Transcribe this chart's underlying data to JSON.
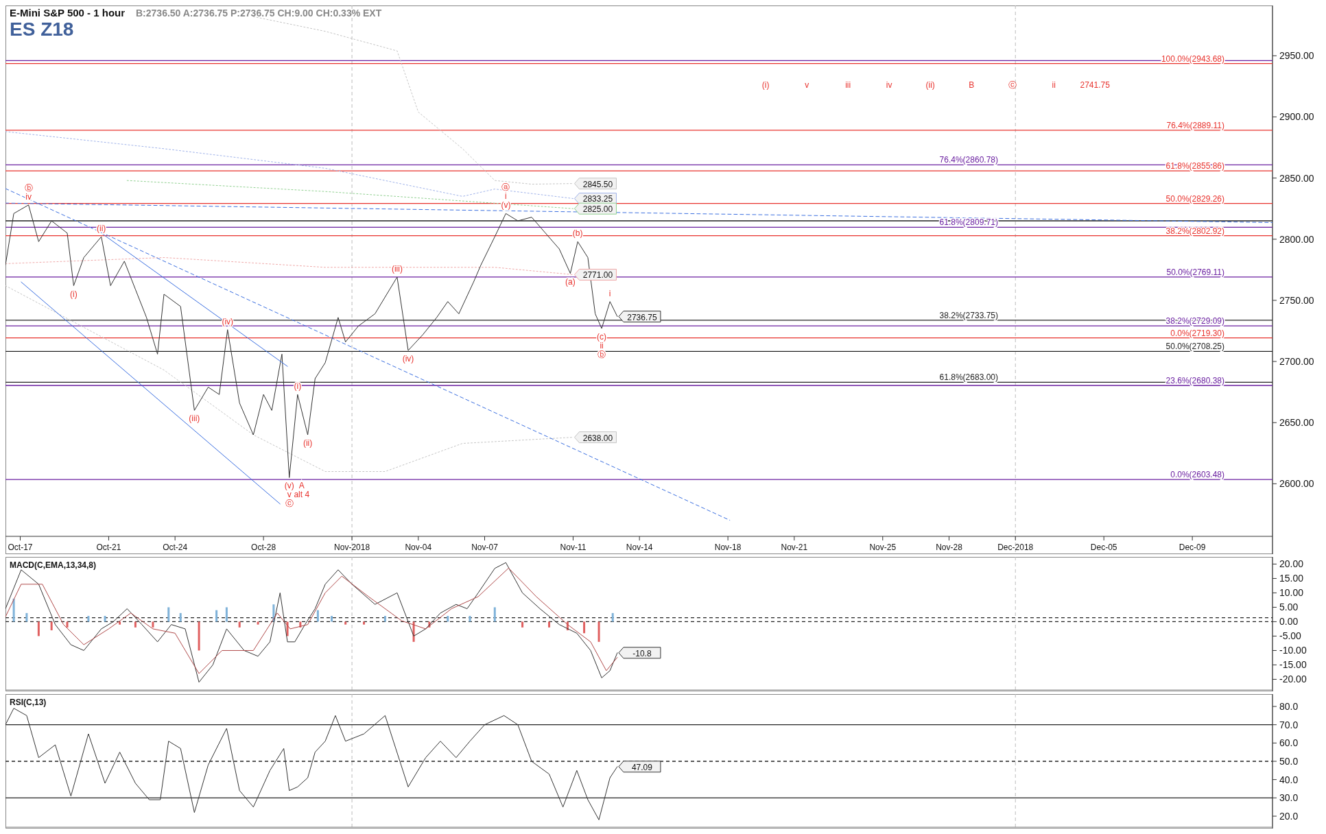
{
  "chart_data": [
    {
      "type": "line",
      "title": "E-Mini S&P 500 - 1 hour",
      "subtitle": "B:2736.50 A:2736.75 P:2736.75 CH:9.00 CH:0.33% EXT",
      "xlim": [
        "2018-10-16T08:00",
        "2018-12-12T15:00"
      ],
      "xticks": [
        {
          "value": "2018-10-17",
          "label": "Oct-17"
        },
        {
          "value": "2018-10-21",
          "label": "Oct-21"
        },
        {
          "value": "2018-10-24",
          "label": "Oct-24"
        },
        {
          "value": "2018-10-28",
          "label": "Oct-28"
        },
        {
          "value": "2018-11-01",
          "label": "Nov-2018"
        },
        {
          "value": "2018-11-04",
          "label": "Nov-04"
        },
        {
          "value": "2018-11-07",
          "label": "Nov-07"
        },
        {
          "value": "2018-11-11",
          "label": "Nov-11"
        },
        {
          "value": "2018-11-14",
          "label": "Nov-14"
        },
        {
          "value": "2018-11-18",
          "label": "Nov-18"
        },
        {
          "value": "2018-11-21",
          "label": "Nov-21"
        },
        {
          "value": "2018-11-25",
          "label": "Nov-25"
        },
        {
          "value": "2018-11-28",
          "label": "Nov-28"
        },
        {
          "value": "2018-12-01",
          "label": "Dec-2018"
        },
        {
          "value": "2018-12-05",
          "label": "Dec-05"
        },
        {
          "value": "2018-12-09",
          "label": "Dec-09"
        }
      ],
      "ylim": [
        2557,
        2990
      ],
      "yticks": [
        {
          "value": 2600,
          "label": "2600.00"
        },
        {
          "value": 2650,
          "label": "2650.00"
        },
        {
          "value": 2700,
          "label": "2700.00"
        },
        {
          "value": 2750,
          "label": "2750.00"
        },
        {
          "value": 2800,
          "label": "2800.00"
        },
        {
          "value": 2850,
          "label": "2850.00"
        },
        {
          "value": 2900,
          "label": "2900.00"
        },
        {
          "value": 2950,
          "label": "2950.00"
        }
      ],
      "series": [
        {
          "color": "#c4c4c4",
          "line_style": "dotted",
          "x": [
            "2018-10-27T13:00",
            "2018-10-30T19:00",
            "2018-11-03T01:00",
            "2018-11-04T00:00",
            "2018-11-06T00:00",
            "2018-11-07T11:00",
            "2018-11-09T03:00",
            "2018-11-11T00:00"
          ],
          "values": [
            2982,
            2970,
            2954,
            2904,
            2874,
            2848,
            2845,
            2845.5
          ]
        },
        {
          "color": "#9fb2ea",
          "line_style": "dotted",
          "x": [
            "2018-10-16T08:00",
            "2018-10-23T12:00",
            "2018-10-30T19:00",
            "2018-11-06T00:00",
            "2018-11-07T11:00",
            "2018-11-11T00:00"
          ],
          "values": [
            2888,
            2874,
            2858,
            2835,
            2841,
            2833.25
          ]
        },
        {
          "color": "#8fd08f",
          "line_style": "dotted",
          "x": [
            "2018-10-21T20:00",
            "2018-10-30T19:00",
            "2018-11-11T00:00"
          ],
          "values": [
            2848,
            2839,
            2825
          ]
        },
        {
          "color": "#f0a8a8",
          "line_style": "dotted",
          "x": [
            "2018-10-16T08:00",
            "2018-10-23T12:00",
            "2018-10-30T19:00",
            "2018-11-07T11:00",
            "2018-11-11T00:00"
          ],
          "values": [
            2780,
            2785,
            2777,
            2777,
            2771
          ]
        },
        {
          "color": "#c4c4c4",
          "line_style": "dotted",
          "x": [
            "2018-10-16T08:00",
            "2018-10-23T12:00",
            "2018-10-27T13:00",
            "2018-10-30T19:00",
            "2018-11-02T12:00",
            "2018-11-06T00:00",
            "2018-11-11T00:00"
          ],
          "values": [
            2762,
            2693,
            2640,
            2610,
            2610,
            2633,
            2638
          ]
        },
        {
          "color": "#333333",
          "x": [
            "2018-10-16T08:00",
            "2018-10-16T17:00",
            "2018-10-17T09:00",
            "2018-10-17T20:00",
            "2018-10-18T10:00",
            "2018-10-19T03:00",
            "2018-10-19T10:00",
            "2018-10-19T21:00",
            "2018-10-20T16:00",
            "2018-10-21T02:00",
            "2018-10-21T17:00",
            "2018-10-22T05:00",
            "2018-10-22T17:00",
            "2018-10-23T05:00",
            "2018-10-23T12:00",
            "2018-10-24T06:00",
            "2018-10-24T21:00",
            "2018-10-25T12:00",
            "2018-10-26T00:00",
            "2018-10-26T09:00",
            "2018-10-26T22:00",
            "2018-10-27T13:00",
            "2018-10-28T00:00",
            "2018-10-28T09:00",
            "2018-10-28T20:00",
            "2018-10-29T04:00",
            "2018-10-29T13:00",
            "2018-10-30T00:00",
            "2018-10-30T08:00",
            "2018-10-30T19:00",
            "2018-10-31T09:00",
            "2018-10-31T17:00",
            "2018-11-01T07:00",
            "2018-11-02T01:00",
            "2018-11-03T01:00",
            "2018-11-03T13:00",
            "2018-11-04T05:00",
            "2018-11-04T20:00",
            "2018-11-05T08:00",
            "2018-11-05T20:00",
            "2018-11-06T12:00",
            "2018-11-06T20:00",
            "2018-11-07T11:00",
            "2018-11-07T23:00",
            "2018-11-08T12:00",
            "2018-11-09T03:00",
            "2018-11-09T18:00",
            "2018-11-10T09:00",
            "2018-11-10T21:00",
            "2018-11-11T05:00",
            "2018-11-11T16:00",
            "2018-11-12T00:00",
            "2018-11-12T07:00",
            "2018-11-12T16:00",
            "2018-11-13T00:00"
          ],
          "values": [
            2779,
            2821,
            2828,
            2798,
            2815,
            2805,
            2762,
            2785,
            2802,
            2762,
            2782,
            2759,
            2736,
            2706,
            2755,
            2745,
            2660,
            2679,
            2673,
            2726,
            2666,
            2640,
            2673,
            2660,
            2706,
            2605,
            2673,
            2640,
            2686,
            2699,
            2736,
            2716,
            2729,
            2739,
            2769,
            2709,
            2722,
            2736,
            2749,
            2739,
            2765,
            2779,
            2802,
            2821,
            2815,
            2818,
            2805,
            2792,
            2772,
            2798,
            2785,
            2739,
            2727,
            2749,
            2736.75
          ]
        },
        {
          "color": "#3b6fe0",
          "line_style": "dashed",
          "x": [
            "2018-10-16T08:00",
            "2018-12-12T15:00"
          ],
          "values": [
            2829.5,
            2813.6
          ]
        },
        {
          "color": "#3b6fe0",
          "line_style": "dashed",
          "x": [
            "2018-10-16T08:00",
            "2018-11-18T02:00"
          ],
          "values": [
            2841.4,
            2570.2
          ]
        },
        {
          "color": "#3b6fe0",
          "line_style": "solid",
          "x": [
            "2018-10-20T16:00",
            "2018-10-29T02:00"
          ],
          "values": [
            2805,
            2696
          ]
        },
        {
          "color": "#3b6fe0",
          "line_style": "solid",
          "x": [
            "2018-10-17T01:00",
            "2018-10-28T18:00"
          ],
          "values": [
            2765,
            2583.5
          ]
        }
      ],
      "ref_lines": [
        {
          "axis": "x",
          "value": "2018-11-01",
          "color": "#bbbbbb",
          "line_style": "dashed"
        },
        {
          "axis": "x",
          "value": "2018-12-01",
          "color": "#bbbbbb",
          "line_style": "dashed"
        },
        {
          "axis": "y",
          "value": 2946,
          "color": "#6a1fa0"
        },
        {
          "axis": "y",
          "value": 2943.68,
          "label": "100.0%(2943.68)",
          "color": "#e8322d"
        },
        {
          "axis": "y",
          "value": 2889.11,
          "label": "76.4%(2889.11)",
          "color": "#e8322d"
        },
        {
          "axis": "y",
          "value": 2855.86,
          "label": "61.8%(2855.86)",
          "color": "#e8322d"
        },
        {
          "axis": "y",
          "value": 2829.26,
          "label": "50.0%(2829.26)",
          "color": "#e8322d"
        },
        {
          "axis": "y",
          "value": 2802.92,
          "label": "38.2%(2802.92)",
          "color": "#e8322d"
        },
        {
          "axis": "y",
          "value": 2719.3,
          "label": "0.0%(2719.30)",
          "color": "#e8322d"
        },
        {
          "axis": "y",
          "value": 2860.78,
          "label": "76.4%(2860.78)",
          "color": "#6a1fa0"
        },
        {
          "axis": "y",
          "value": 2809.71,
          "label": "61.8%(2809.71)",
          "color": "#6a1fa0"
        },
        {
          "axis": "y",
          "value": 2769.11,
          "label": "50.0%(2769.11)",
          "color": "#6a1fa0"
        },
        {
          "axis": "y",
          "value": 2729.09,
          "label": "38.2%(2729.09)",
          "color": "#6a1fa0"
        },
        {
          "axis": "y",
          "value": 2680.38,
          "label": "23.6%(2680.38)",
          "color": "#6a1fa0"
        },
        {
          "axis": "y",
          "value": 2603.48,
          "label": "0.0%(2603.48)",
          "color": "#6a1fa0"
        },
        {
          "axis": "y",
          "value": 2815,
          "color": "#222222"
        },
        {
          "axis": "y",
          "value": 2733.75,
          "label": "38.2%(2733.75)",
          "color": "#222222"
        },
        {
          "axis": "y",
          "value": 2708.25,
          "label": "50.0%(2708.25)",
          "color": "#222222"
        },
        {
          "axis": "y",
          "value": 2683.0,
          "label": "61.8%(2683.00)",
          "color": "#222222"
        }
      ],
      "annotations": [
        "ES Z18",
        "(i)",
        "v",
        "iii",
        "iv",
        "(ii)",
        "B",
        "ⓒ",
        "ii",
        "2741.75",
        {
          "text": "iv",
          "x": "2018-10-17T09:00",
          "y": 2828
        },
        {
          "text": "ⓑ",
          "x": "2018-10-17T09:00",
          "y": 2828
        },
        {
          "text": "(ii)",
          "x": "2018-10-20T16:00",
          "y": 2802
        },
        {
          "text": "(i)",
          "x": "2018-10-19T10:00",
          "y": 2762
        },
        {
          "text": "(iii)",
          "x": "2018-10-24T21:00",
          "y": 2660
        },
        {
          "text": "(iv)",
          "x": "2018-10-26T09:00",
          "y": 2726
        },
        {
          "text": "(v)",
          "x": "2018-10-29T04:00",
          "y": 2605
        },
        {
          "text": "v",
          "x": "2018-10-29T04:00",
          "y": 2605
        },
        {
          "text": "ⓒ",
          "x": "2018-10-29T04:00",
          "y": 2605
        },
        {
          "text": "A",
          "x": "2018-10-29T04:00",
          "y": 2605
        },
        {
          "text": "alt 4",
          "x": "2018-10-29T04:00",
          "y": 2605
        },
        {
          "text": "(i)",
          "x": "2018-10-29T13:00",
          "y": 2673
        },
        {
          "text": "(ii)",
          "x": "2018-10-30T00:00",
          "y": 2640
        },
        {
          "text": "(iii)",
          "x": "2018-11-03T01:00",
          "y": 2769
        },
        {
          "text": "(iv)",
          "x": "2018-11-03T13:00",
          "y": 2709
        },
        {
          "text": "(v)",
          "x": "2018-11-07T23:00",
          "y": 2821
        },
        {
          "text": "i",
          "x": "2018-11-07T23:00",
          "y": 2821
        },
        {
          "text": "ⓐ",
          "x": "2018-11-07T23:00",
          "y": 2821
        },
        {
          "text": "(b)",
          "x": "2018-11-11T05:00",
          "y": 2798
        },
        {
          "text": "(a)",
          "x": "2018-11-10T21:00",
          "y": 2772
        },
        {
          "text": "(c)",
          "x": "2018-11-12T07:00",
          "y": 2727
        },
        {
          "text": "ii",
          "x": "2018-11-12T07:00",
          "y": 2727
        },
        {
          "text": "ⓑ",
          "x": "2018-11-12T07:00",
          "y": 2727
        },
        {
          "text": "i",
          "x": "2018-11-12T16:00",
          "y": 2749
        },
        {
          "text": "2845.50",
          "x": "2018-11-11T00:00",
          "y": 2845.5
        },
        {
          "text": "2833.25",
          "x": "2018-11-11T00:00",
          "y": 2833.25
        },
        {
          "text": "2825.00",
          "x": "2018-11-11T00:00",
          "y": 2825
        },
        {
          "text": "2771.00",
          "x": "2018-11-11T00:00",
          "y": 2771
        },
        {
          "text": "2638.00",
          "x": "2018-11-11T00:00",
          "y": 2638
        },
        {
          "text": "2736.75",
          "x": "2018-11-13T00:00",
          "y": 2736.75
        }
      ]
    },
    {
      "type": "line",
      "title": "MACD(C,EMA,13,34,8)",
      "tick_labels": "y",
      "xlim": [
        "2018-10-16T08:00",
        "2018-12-12T15:00"
      ],
      "ylim": [
        -23.7,
        22
      ],
      "yticks": [
        {
          "value": -20,
          "label": "-20.00"
        },
        {
          "value": -15,
          "label": "-15.00"
        },
        {
          "value": -10,
          "label": "-10.00"
        },
        {
          "value": -5,
          "label": "-5.00"
        },
        {
          "value": 0,
          "label": "0.00"
        },
        {
          "value": 5,
          "label": "5.00"
        },
        {
          "value": 10,
          "label": "10.00"
        },
        {
          "value": 15,
          "label": "15.00"
        },
        {
          "value": 20,
          "label": "20.00"
        }
      ],
      "series": [
        {
          "type": "bar",
          "x": [
            "2018-10-16T17:00",
            "2018-10-17T07:00",
            "2018-10-17T20:00",
            "2018-10-18T10:00",
            "2018-10-19T03:00",
            "2018-10-20T02:00",
            "2018-10-20T20:00",
            "2018-10-21T12:00",
            "2018-10-22T05:00",
            "2018-10-23T00:00",
            "2018-10-23T17:00",
            "2018-10-24T06:00",
            "2018-10-25T02:00",
            "2018-10-25T21:00",
            "2018-10-26T08:00",
            "2018-10-26T22:00",
            "2018-10-27T18:00",
            "2018-10-28T11:00",
            "2018-10-29T02:00",
            "2018-10-29T16:00",
            "2018-10-30T11:00",
            "2018-10-31T02:00",
            "2018-10-31T17:00",
            "2018-11-01T13:00",
            "2018-11-02T12:00",
            "2018-11-03T19:00",
            "2018-11-04T12:00",
            "2018-11-05T08:00",
            "2018-11-06T08:00",
            "2018-11-07T11:00",
            "2018-11-08T17:00",
            "2018-11-09T22:00",
            "2018-11-10T18:00",
            "2018-11-11T12:00",
            "2018-11-12T04:00",
            "2018-11-12T19:00"
          ],
          "values": [
            8,
            3,
            -5,
            -3,
            -2,
            2,
            2,
            -1,
            -2,
            -2,
            5,
            3,
            -10,
            4,
            5,
            -2,
            -1,
            6,
            -5,
            -2,
            4,
            2,
            -1,
            -1,
            2,
            -7,
            -2,
            2,
            2,
            5,
            -2,
            -2,
            -3,
            -4,
            -7,
            3
          ],
          "colors": [
            "#7fb2d9",
            "#7fb2d9",
            "#e06060",
            "#e06060",
            "#e06060",
            "#7fb2d9",
            "#7fb2d9",
            "#e06060",
            "#e06060",
            "#e06060",
            "#7fb2d9",
            "#7fb2d9",
            "#e06060",
            "#7fb2d9",
            "#7fb2d9",
            "#e06060",
            "#e06060",
            "#7fb2d9",
            "#e06060",
            "#e06060",
            "#7fb2d9",
            "#7fb2d9",
            "#e06060",
            "#e06060",
            "#7fb2d9",
            "#e06060",
            "#e06060",
            "#7fb2d9",
            "#7fb2d9",
            "#7fb2d9",
            "#e06060",
            "#e06060",
            "#e06060",
            "#e06060",
            "#e06060",
            "#7fb2d9"
          ]
        },
        {
          "color": "#333333",
          "x": [
            "2018-10-16T08:00",
            "2018-10-17T01:00",
            "2018-10-17T20:00",
            "2018-10-18T14:00",
            "2018-10-19T07:00",
            "2018-10-19T21:00",
            "2018-10-20T16:00",
            "2018-10-21T05:00",
            "2018-10-21T20:00",
            "2018-10-22T12:00",
            "2018-10-23T05:00",
            "2018-10-23T20:00",
            "2018-10-24T11:00",
            "2018-10-25T02:00",
            "2018-10-25T17:00",
            "2018-10-26T08:00",
            "2018-10-27T03:00",
            "2018-10-27T18:00",
            "2018-10-28T07:00",
            "2018-10-28T18:00",
            "2018-10-29T02:00",
            "2018-10-29T10:00",
            "2018-10-29T21:00",
            "2018-10-30T08:00",
            "2018-10-30T19:00",
            "2018-10-31T09:00",
            "2018-11-01T00:00",
            "2018-11-02T01:00",
            "2018-11-03T01:00",
            "2018-11-03T19:00",
            "2018-11-04T08:00",
            "2018-11-05T00:00",
            "2018-11-05T17:00",
            "2018-11-06T05:00",
            "2018-11-06T17:00",
            "2018-11-07T11:00",
            "2018-11-07T23:00",
            "2018-11-08T17:00",
            "2018-11-09T12:00",
            "2018-11-10T09:00",
            "2018-11-11T04:00",
            "2018-11-11T19:00",
            "2018-11-12T07:00",
            "2018-11-12T16:00",
            "2018-11-13T00:00"
          ],
          "values": [
            4.5,
            18,
            13,
            -1,
            -8,
            -10,
            -2.5,
            0,
            4.5,
            -1,
            -7,
            -1,
            -2.5,
            -21,
            -15,
            -2.5,
            -10,
            -12,
            -7,
            10,
            -7,
            -7,
            -1,
            4.5,
            13,
            18,
            13,
            6,
            10,
            -5,
            -2.5,
            3,
            6,
            4.5,
            10,
            18.5,
            20.5,
            10,
            4.5,
            -1,
            -4,
            -10,
            -19.5,
            -17,
            -10.8
          ]
        },
        {
          "color": "#b04a4a",
          "x": [
            "2018-10-16T08:00",
            "2018-10-17T01:00",
            "2018-10-18T00:00",
            "2018-10-18T23:00",
            "2018-10-19T21:00",
            "2018-10-21T00:00",
            "2018-10-22T00:00",
            "2018-10-23T00:00",
            "2018-10-24T00:00",
            "2018-10-25T02:00",
            "2018-10-26T03:00",
            "2018-10-27T13:00",
            "2018-10-28T15:00",
            "2018-10-29T05:00",
            "2018-10-30T00:00",
            "2018-10-30T19:00",
            "2018-10-31T13:00",
            "2018-11-01T18:00",
            "2018-11-03T06:00",
            "2018-11-04T08:00",
            "2018-11-05T12:00",
            "2018-11-06T17:00",
            "2018-11-08T02:00",
            "2018-11-09T08:00",
            "2018-11-10T18:00",
            "2018-11-11T19:00",
            "2018-11-12T12:00",
            "2018-11-13T00:00"
          ],
          "values": [
            1.7,
            13,
            13,
            -1,
            -8,
            -2.5,
            3,
            -2.5,
            -4,
            -18,
            -10,
            -10,
            3,
            -2.5,
            -1,
            10,
            15.8,
            8.7,
            0.3,
            -2.5,
            4.5,
            8.7,
            18.6,
            8.7,
            -1,
            -7,
            -17,
            -12.4
          ]
        }
      ],
      "ref_lines": [
        {
          "axis": "x",
          "value": "2018-11-01",
          "color": "#bbbbbb",
          "line_style": "dashed"
        },
        {
          "axis": "x",
          "value": "2018-12-01",
          "color": "#bbbbbb",
          "line_style": "dashed"
        },
        {
          "axis": "y",
          "value": 0,
          "color": "#222222",
          "line_style": "dashed"
        },
        {
          "axis": "y",
          "value": 1.4,
          "color": "#222222",
          "line_style": "dashed"
        }
      ],
      "annotations": [
        {
          "text": "-10.8",
          "x": "2018-11-13T00:00",
          "y": -10.8
        }
      ]
    },
    {
      "type": "line",
      "title": "RSI(C,13)",
      "tick_labels": "y",
      "xlim": [
        "2018-10-16T08:00",
        "2018-12-12T15:00"
      ],
      "ylim": [
        14,
        86
      ],
      "yticks": [
        {
          "value": 20,
          "label": "20.0"
        },
        {
          "value": 30,
          "label": "30.0"
        },
        {
          "value": 40,
          "label": "40.0"
        },
        {
          "value": 50,
          "label": "50.0"
        },
        {
          "value": 60,
          "label": "60.0"
        },
        {
          "value": 70,
          "label": "70.0"
        },
        {
          "value": 80,
          "label": "80.0"
        }
      ],
      "series": [
        {
          "color": "#333333",
          "x": [
            "2018-10-16T08:00",
            "2018-10-16T17:00",
            "2018-10-17T07:00",
            "2018-10-17T20:00",
            "2018-10-18T14:00",
            "2018-10-19T07:00",
            "2018-10-20T02:00",
            "2018-10-20T20:00",
            "2018-10-21T12:00",
            "2018-10-22T05:00",
            "2018-10-22T20:00",
            "2018-10-23T08:00",
            "2018-10-23T17:00",
            "2018-10-24T06:00",
            "2018-10-24T21:00",
            "2018-10-25T12:00",
            "2018-10-26T08:00",
            "2018-10-26T22:00",
            "2018-10-27T13:00",
            "2018-10-28T07:00",
            "2018-10-28T22:00",
            "2018-10-29T04:00",
            "2018-10-29T13:00",
            "2018-10-30T00:00",
            "2018-10-30T08:00",
            "2018-10-30T19:00",
            "2018-10-31T06:00",
            "2018-10-31T17:00",
            "2018-11-01T13:00",
            "2018-11-02T12:00",
            "2018-11-03T13:00",
            "2018-11-04T08:00",
            "2018-11-05T00:00",
            "2018-11-05T17:00",
            "2018-11-06T08:00",
            "2018-11-07T00:00",
            "2018-11-07T21:00",
            "2018-11-08T12:00",
            "2018-11-09T03:00",
            "2018-11-09T22:00",
            "2018-11-10T13:00",
            "2018-11-11T04:00",
            "2018-11-11T16:00",
            "2018-11-12T04:00",
            "2018-11-12T16:00",
            "2018-11-13T00:00"
          ],
          "values": [
            70,
            79,
            75,
            52,
            59,
            31,
            65,
            38,
            55,
            38,
            29,
            29,
            61,
            57,
            22,
            48,
            68,
            34,
            25,
            45,
            57,
            34,
            36,
            41,
            55,
            61,
            75,
            61,
            65,
            75,
            36,
            52,
            61,
            52,
            61,
            70,
            75,
            70,
            50,
            43,
            25,
            45,
            29,
            18,
            41,
            47.09
          ]
        }
      ],
      "ref_lines": [
        {
          "axis": "x",
          "value": "2018-11-01",
          "color": "#bbbbbb",
          "line_style": "dashed"
        },
        {
          "axis": "x",
          "value": "2018-12-01",
          "color": "#bbbbbb",
          "line_style": "dashed"
        },
        {
          "axis": "y",
          "value": 70,
          "color": "#222222"
        },
        {
          "axis": "y",
          "value": 50,
          "color": "#222222",
          "line_style": "dashed"
        },
        {
          "axis": "y",
          "value": 30,
          "color": "#222222"
        }
      ],
      "annotations": [
        {
          "text": "47.09",
          "x": "2018-11-13T00:00",
          "y": 47.09
        }
      ]
    }
  ]
}
